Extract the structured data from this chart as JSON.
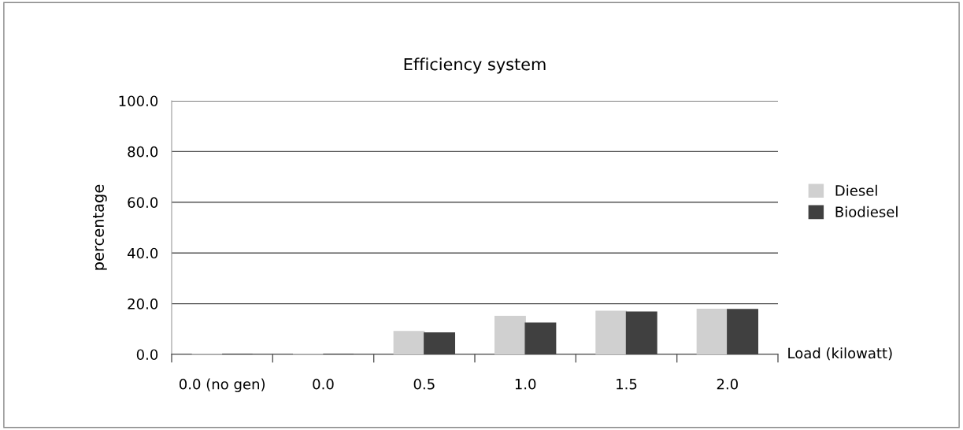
{
  "chart_data": {
    "type": "bar",
    "title": "Efficiency system",
    "xlabel": "Load (kilowatt)",
    "ylabel": "percentage",
    "categories": [
      "0.0 (no gen)",
      "0.0",
      "0.5",
      "1.0",
      "1.5",
      "2.0"
    ],
    "series": [
      {
        "name": "Diesel",
        "color": "#d0d0d0",
        "values": [
          0,
          0,
          9.0,
          15.0,
          17.0,
          17.8
        ]
      },
      {
        "name": "Biodiesel",
        "color": "#404040",
        "values": [
          0,
          0,
          8.5,
          12.4,
          16.7,
          17.7
        ]
      }
    ],
    "ylim": [
      0,
      100
    ],
    "yticks": [
      {
        "value": 0,
        "label": "0.0"
      },
      {
        "value": 20,
        "label": "20.0"
      },
      {
        "value": 40,
        "label": "40.0"
      },
      {
        "value": 60,
        "label": "60.0"
      },
      {
        "value": 80,
        "label": "80.0"
      },
      {
        "value": 100,
        "label": "100.0"
      }
    ],
    "grid": "y",
    "legend": "right"
  }
}
